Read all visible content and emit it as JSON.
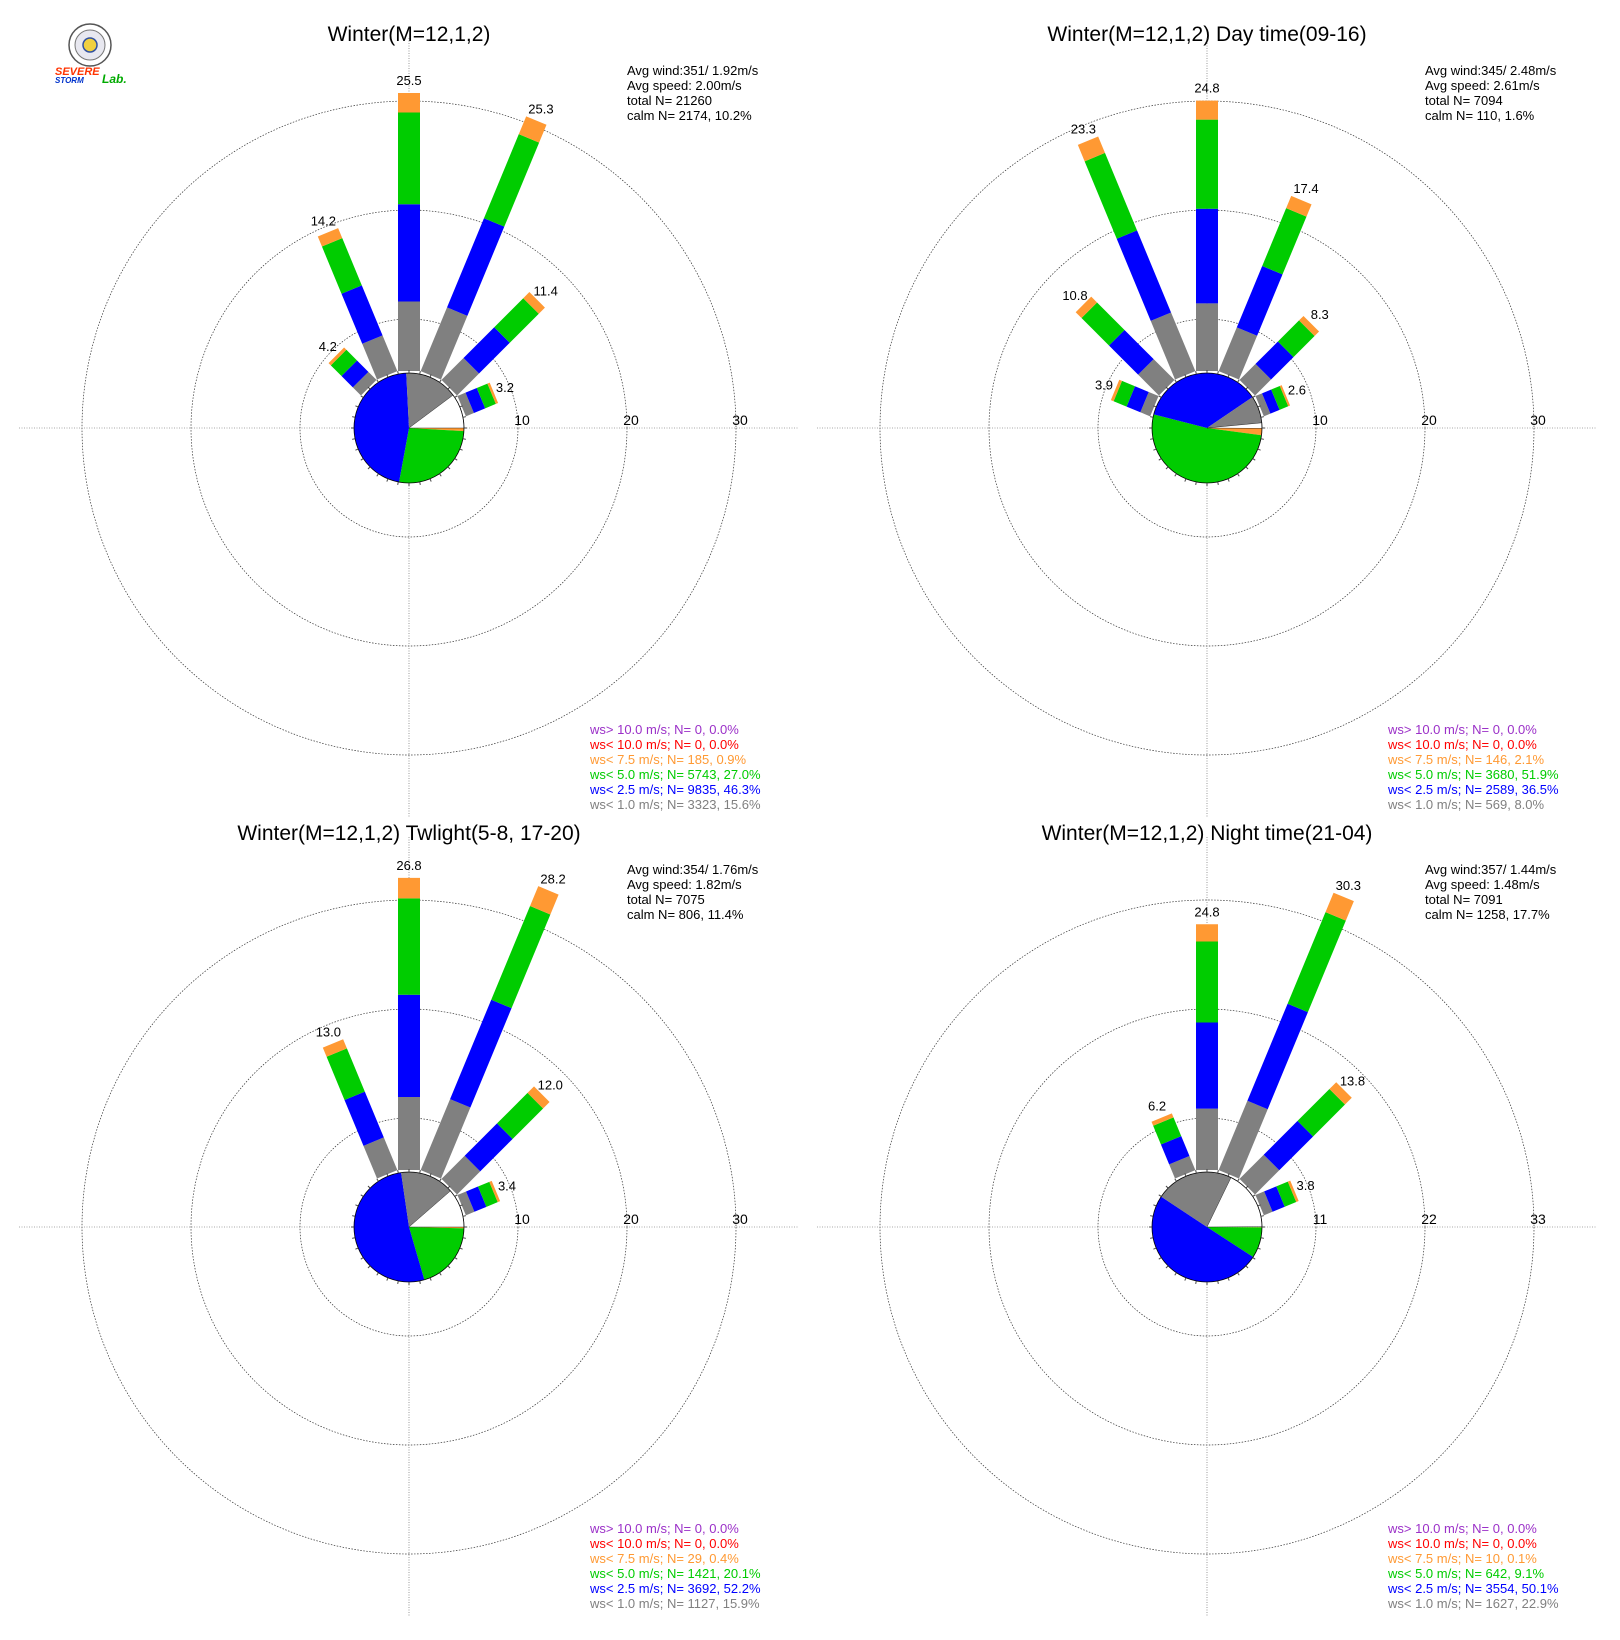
{
  "logo": {
    "text_lines": [
      "SEVERE",
      "STORM",
      "Lab."
    ]
  },
  "colors": {
    "gt10": "#9b30c8",
    "lt10": "#ff0000",
    "lt7_5": "#ff9933",
    "lt5": "#00cc00",
    "lt2_5": "#0000ff",
    "lt1": "#808080",
    "calm": "#ffffff"
  },
  "chart_data": [
    {
      "type": "wind-rose",
      "title": "Winter(M=12,1,2)",
      "stats": [
        "Avg wind:351/ 1.92m/s",
        "Avg speed: 2.00m/s",
        "total N=      21260",
        "calm N=   2174,  10.2%"
      ],
      "ring_labels": [
        "10",
        "20",
        "30"
      ],
      "ring_step": 10,
      "bars": [
        {
          "dir": 315,
          "total": 4.2,
          "label": "4.2"
        },
        {
          "dir": 337.5,
          "total": 14.2,
          "label": "14.2"
        },
        {
          "dir": 0,
          "total": 25.5,
          "label": "25.5"
        },
        {
          "dir": 22.5,
          "total": 25.3,
          "label": "25.3"
        },
        {
          "dir": 45,
          "total": 11.4,
          "label": "11.4"
        },
        {
          "dir": 67.5,
          "total": 3.2,
          "label": "3.2"
        }
      ],
      "pie": {
        "lt1": 15.6,
        "lt2_5": 46.3,
        "lt5": 27.0,
        "lt7_5": 0.9,
        "lt10": 0.0,
        "gt10": 0.0,
        "calm": 10.2
      },
      "legend": [
        {
          "key": "gt10",
          "text": "ws> 10.0 m/s; N=     0,  0.0%"
        },
        {
          "key": "lt10",
          "text": "ws< 10.0 m/s; N=     0,  0.0%"
        },
        {
          "key": "lt7_5",
          "text": "ws<  7.5 m/s; N=   185,  0.9%"
        },
        {
          "key": "lt5",
          "text": "ws<  5.0 m/s; N=  5743, 27.0%"
        },
        {
          "key": "lt2_5",
          "text": "ws<  2.5 m/s; N=  9835, 46.3%"
        },
        {
          "key": "lt1",
          "text": "ws<  1.0 m/s; N=  3323, 15.6%"
        }
      ]
    },
    {
      "type": "wind-rose",
      "title": "Winter(M=12,1,2) Day time(09-16)",
      "stats": [
        "Avg wind:345/ 2.48m/s",
        "Avg speed: 2.61m/s",
        "total N=       7094",
        "calm N=    110,   1.6%"
      ],
      "ring_labels": [
        "10",
        "20",
        "30"
      ],
      "ring_step": 10,
      "bars": [
        {
          "dir": 292.5,
          "total": 3.9,
          "label": "3.9"
        },
        {
          "dir": 315,
          "total": 10.8,
          "label": "10.8"
        },
        {
          "dir": 337.5,
          "total": 23.3,
          "label": "23.3"
        },
        {
          "dir": 0,
          "total": 24.8,
          "label": "24.8"
        },
        {
          "dir": 22.5,
          "total": 17.4,
          "label": "17.4"
        },
        {
          "dir": 45,
          "total": 8.3,
          "label": "8.3"
        },
        {
          "dir": 67.5,
          "total": 2.6,
          "label": "2.6"
        }
      ],
      "pie": {
        "lt1": 8.0,
        "lt2_5": 36.5,
        "lt5": 51.9,
        "lt7_5": 2.1,
        "lt10": 0.0,
        "gt10": 0.0,
        "calm": 1.6
      },
      "legend": [
        {
          "key": "gt10",
          "text": "ws> 10.0 m/s; N=     0,  0.0%"
        },
        {
          "key": "lt10",
          "text": "ws< 10.0 m/s; N=     0,  0.0%"
        },
        {
          "key": "lt7_5",
          "text": "ws<  7.5 m/s; N=   146,  2.1%"
        },
        {
          "key": "lt5",
          "text": "ws<  5.0 m/s; N=  3680, 51.9%"
        },
        {
          "key": "lt2_5",
          "text": "ws<  2.5 m/s; N=  2589, 36.5%"
        },
        {
          "key": "lt1",
          "text": "ws<  1.0 m/s; N=   569,  8.0%"
        }
      ]
    },
    {
      "type": "wind-rose",
      "title": "Winter(M=12,1,2) Twlight(5-8, 17-20)",
      "stats": [
        "Avg wind:354/ 1.76m/s",
        "Avg speed: 1.82m/s",
        "total N=       7075",
        "calm N=    806,  11.4%"
      ],
      "ring_labels": [
        "10",
        "20",
        "30"
      ],
      "ring_step": 10,
      "bars": [
        {
          "dir": 337.5,
          "total": 13.0,
          "label": "13.0"
        },
        {
          "dir": 0,
          "total": 26.8,
          "label": "26.8"
        },
        {
          "dir": 22.5,
          "total": 28.2,
          "label": "28.2"
        },
        {
          "dir": 45,
          "total": 12.0,
          "label": "12.0"
        },
        {
          "dir": 67.5,
          "total": 3.4,
          "label": "3.4"
        }
      ],
      "pie": {
        "lt1": 15.9,
        "lt2_5": 52.2,
        "lt5": 20.1,
        "lt7_5": 0.4,
        "lt10": 0.0,
        "gt10": 0.0,
        "calm": 11.4
      },
      "legend": [
        {
          "key": "gt10",
          "text": "ws> 10.0 m/s; N=     0,  0.0%"
        },
        {
          "key": "lt10",
          "text": "ws< 10.0 m/s; N=     0,  0.0%"
        },
        {
          "key": "lt7_5",
          "text": "ws<  7.5 m/s; N=    29,  0.4%"
        },
        {
          "key": "lt5",
          "text": "ws<  5.0 m/s; N=  1421, 20.1%"
        },
        {
          "key": "lt2_5",
          "text": "ws<  2.5 m/s; N=  3692, 52.2%"
        },
        {
          "key": "lt1",
          "text": "ws<  1.0 m/s; N=  1127, 15.9%"
        }
      ]
    },
    {
      "type": "wind-rose",
      "title": "Winter(M=12,1,2) Night time(21-04)",
      "stats": [
        "Avg wind:357/ 1.44m/s",
        "Avg speed: 1.48m/s",
        "total N=       7091",
        "calm N=   1258,  17.7%"
      ],
      "ring_labels": [
        "11",
        "22",
        "33"
      ],
      "ring_step": 11,
      "bars": [
        {
          "dir": 337.5,
          "total": 6.2,
          "label": "6.2"
        },
        {
          "dir": 0,
          "total": 24.8,
          "label": "24.8"
        },
        {
          "dir": 22.5,
          "total": 30.3,
          "label": "30.3"
        },
        {
          "dir": 45,
          "total": 13.8,
          "label": "13.8"
        },
        {
          "dir": 67.5,
          "total": 3.8,
          "label": "3.8"
        }
      ],
      "pie": {
        "lt1": 22.9,
        "lt2_5": 50.1,
        "lt5": 9.1,
        "lt7_5": 0.1,
        "lt10": 0.0,
        "gt10": 0.0,
        "calm": 17.7
      },
      "legend": [
        {
          "key": "gt10",
          "text": "ws> 10.0 m/s; N=     0,  0.0%"
        },
        {
          "key": "lt10",
          "text": "ws< 10.0 m/s; N=     0,  0.0%"
        },
        {
          "key": "lt7_5",
          "text": "ws<  7.5 m/s; N=    10,  0.1%"
        },
        {
          "key": "lt5",
          "text": "ws<  5.0 m/s; N=   642,  9.1%"
        },
        {
          "key": "lt2_5",
          "text": "ws<  2.5 m/s; N=  3554, 50.1%"
        },
        {
          "key": "lt1",
          "text": "ws<  1.0 m/s; N=  1627, 22.9%"
        }
      ]
    }
  ]
}
